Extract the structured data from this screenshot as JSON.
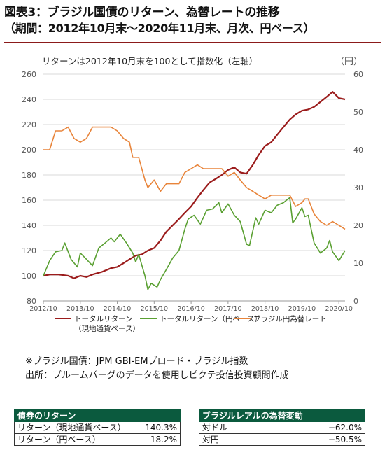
{
  "header": {
    "title": "図表3：ブラジル国債のリターン、為替レートの推移",
    "subtitle": "（期間：2012年10月末～2020年11月末、月次、円ベース）"
  },
  "chart_data": {
    "type": "line",
    "annotation": "リターンは2012年10月末を100として指数化（左軸）",
    "y2_unit_label": "（円）",
    "x_ticks": [
      "2012/10",
      "2013/10",
      "2014/10",
      "2015/10",
      "2016/10",
      "2017/10",
      "2018/10",
      "2019/10",
      "2020/10"
    ],
    "x_range": [
      2012.75,
      2020.917
    ],
    "y_left": {
      "min": 80,
      "max": 260,
      "ticks": [
        80,
        100,
        120,
        140,
        160,
        180,
        200,
        220,
        240,
        260
      ]
    },
    "y_right": {
      "min": 0,
      "max": 60,
      "ticks": [
        0,
        10,
        20,
        30,
        40,
        50,
        60
      ]
    },
    "series": [
      {
        "name": "トータルリターン（現地通貨ベース）",
        "axis": "left",
        "color": "#9b1c1c",
        "points": [
          [
            2012.75,
            100
          ],
          [
            2012.92,
            101
          ],
          [
            2013.17,
            101
          ],
          [
            2013.42,
            100
          ],
          [
            2013.58,
            98
          ],
          [
            2013.75,
            100
          ],
          [
            2013.92,
            99
          ],
          [
            2014.08,
            101
          ],
          [
            2014.33,
            103
          ],
          [
            2014.58,
            106
          ],
          [
            2014.75,
            107
          ],
          [
            2014.92,
            110
          ],
          [
            2015.08,
            113
          ],
          [
            2015.25,
            116
          ],
          [
            2015.42,
            117
          ],
          [
            2015.58,
            120
          ],
          [
            2015.75,
            122
          ],
          [
            2015.92,
            128
          ],
          [
            2016.08,
            135
          ],
          [
            2016.25,
            140
          ],
          [
            2016.42,
            145
          ],
          [
            2016.58,
            150
          ],
          [
            2016.75,
            155
          ],
          [
            2016.92,
            162
          ],
          [
            2017.08,
            168
          ],
          [
            2017.25,
            174
          ],
          [
            2017.42,
            177
          ],
          [
            2017.58,
            180
          ],
          [
            2017.75,
            184
          ],
          [
            2017.92,
            186
          ],
          [
            2018.08,
            182
          ],
          [
            2018.25,
            181
          ],
          [
            2018.42,
            188
          ],
          [
            2018.58,
            196
          ],
          [
            2018.75,
            203
          ],
          [
            2018.92,
            206
          ],
          [
            2019.08,
            212
          ],
          [
            2019.25,
            218
          ],
          [
            2019.42,
            224
          ],
          [
            2019.58,
            228
          ],
          [
            2019.75,
            231
          ],
          [
            2019.92,
            232
          ],
          [
            2020.08,
            234
          ],
          [
            2020.25,
            238
          ],
          [
            2020.42,
            242
          ],
          [
            2020.58,
            246
          ],
          [
            2020.75,
            241
          ],
          [
            2020.917,
            240
          ]
        ]
      },
      {
        "name": "トータルリターン（円ベース）",
        "axis": "left",
        "color": "#5aa032",
        "points": [
          [
            2012.75,
            100
          ],
          [
            2012.92,
            112
          ],
          [
            2013.08,
            119
          ],
          [
            2013.25,
            120
          ],
          [
            2013.33,
            126
          ],
          [
            2013.5,
            113
          ],
          [
            2013.67,
            107
          ],
          [
            2013.75,
            118
          ],
          [
            2013.92,
            113
          ],
          [
            2014.08,
            108
          ],
          [
            2014.25,
            122
          ],
          [
            2014.42,
            126
          ],
          [
            2014.58,
            130
          ],
          [
            2014.67,
            127
          ],
          [
            2014.83,
            133
          ],
          [
            2015.0,
            126
          ],
          [
            2015.17,
            118
          ],
          [
            2015.25,
            111
          ],
          [
            2015.33,
            117
          ],
          [
            2015.5,
            100
          ],
          [
            2015.58,
            89
          ],
          [
            2015.67,
            94
          ],
          [
            2015.83,
            91
          ],
          [
            2015.92,
            97
          ],
          [
            2016.08,
            105
          ],
          [
            2016.25,
            114
          ],
          [
            2016.42,
            120
          ],
          [
            2016.58,
            137
          ],
          [
            2016.67,
            145
          ],
          [
            2016.83,
            148
          ],
          [
            2017.0,
            141
          ],
          [
            2017.17,
            152
          ],
          [
            2017.33,
            153
          ],
          [
            2017.5,
            158
          ],
          [
            2017.58,
            150
          ],
          [
            2017.75,
            157
          ],
          [
            2017.92,
            148
          ],
          [
            2018.08,
            143
          ],
          [
            2018.25,
            125
          ],
          [
            2018.33,
            124
          ],
          [
            2018.5,
            146
          ],
          [
            2018.58,
            141
          ],
          [
            2018.75,
            152
          ],
          [
            2018.92,
            150
          ],
          [
            2019.08,
            156
          ],
          [
            2019.25,
            158
          ],
          [
            2019.42,
            162
          ],
          [
            2019.5,
            142
          ],
          [
            2019.58,
            145
          ],
          [
            2019.75,
            154
          ],
          [
            2019.83,
            147
          ],
          [
            2019.92,
            148
          ],
          [
            2020.08,
            126
          ],
          [
            2020.25,
            118
          ],
          [
            2020.42,
            122
          ],
          [
            2020.5,
            128
          ],
          [
            2020.58,
            119
          ],
          [
            2020.75,
            112
          ],
          [
            2020.917,
            120
          ]
        ]
      },
      {
        "name": "ブラジル円為替レート",
        "axis": "right",
        "color": "#e8843a",
        "points": [
          [
            2012.75,
            40
          ],
          [
            2012.92,
            40
          ],
          [
            2013.08,
            45
          ],
          [
            2013.25,
            45
          ],
          [
            2013.42,
            46
          ],
          [
            2013.58,
            43
          ],
          [
            2013.75,
            42
          ],
          [
            2013.92,
            43
          ],
          [
            2014.08,
            46
          ],
          [
            2014.25,
            46
          ],
          [
            2014.42,
            46
          ],
          [
            2014.58,
            46
          ],
          [
            2014.75,
            45
          ],
          [
            2014.92,
            43
          ],
          [
            2015.08,
            42
          ],
          [
            2015.17,
            38
          ],
          [
            2015.33,
            38
          ],
          [
            2015.5,
            32
          ],
          [
            2015.58,
            30
          ],
          [
            2015.75,
            32
          ],
          [
            2015.92,
            29
          ],
          [
            2016.08,
            31
          ],
          [
            2016.25,
            31
          ],
          [
            2016.42,
            31
          ],
          [
            2016.58,
            34
          ],
          [
            2016.75,
            35
          ],
          [
            2016.92,
            36
          ],
          [
            2017.08,
            35
          ],
          [
            2017.25,
            35
          ],
          [
            2017.42,
            35
          ],
          [
            2017.58,
            35
          ],
          [
            2017.75,
            33
          ],
          [
            2017.92,
            34
          ],
          [
            2018.08,
            32
          ],
          [
            2018.25,
            30
          ],
          [
            2018.42,
            29
          ],
          [
            2018.58,
            28
          ],
          [
            2018.75,
            27
          ],
          [
            2018.92,
            28
          ],
          [
            2019.08,
            28
          ],
          [
            2019.25,
            28
          ],
          [
            2019.42,
            28
          ],
          [
            2019.58,
            25
          ],
          [
            2019.75,
            26
          ],
          [
            2019.83,
            27
          ],
          [
            2019.92,
            27
          ],
          [
            2020.08,
            23
          ],
          [
            2020.25,
            21
          ],
          [
            2020.42,
            20
          ],
          [
            2020.58,
            21
          ],
          [
            2020.75,
            20
          ],
          [
            2020.917,
            19
          ]
        ]
      }
    ],
    "legend": {
      "position": "bottom"
    }
  },
  "notes": {
    "line1": "※ブラジル国債：JPM GBI-EMブロード・ブラジル指数",
    "line2": "出所：ブルームバーグのデータを使用しピクテ投信投資顧問作成"
  },
  "table_returns": {
    "header": "債券のリターン",
    "rows": [
      {
        "label": "リターン（現地通貨ベース）",
        "value": "140.3%"
      },
      {
        "label": "リターン（円ベース）",
        "value": "18.2%"
      }
    ]
  },
  "table_fx": {
    "header": "ブラジルレアルの為替変動",
    "rows": [
      {
        "label": "対ドル",
        "value": "−62.0%"
      },
      {
        "label": "対円",
        "value": "−50.5%"
      }
    ]
  }
}
